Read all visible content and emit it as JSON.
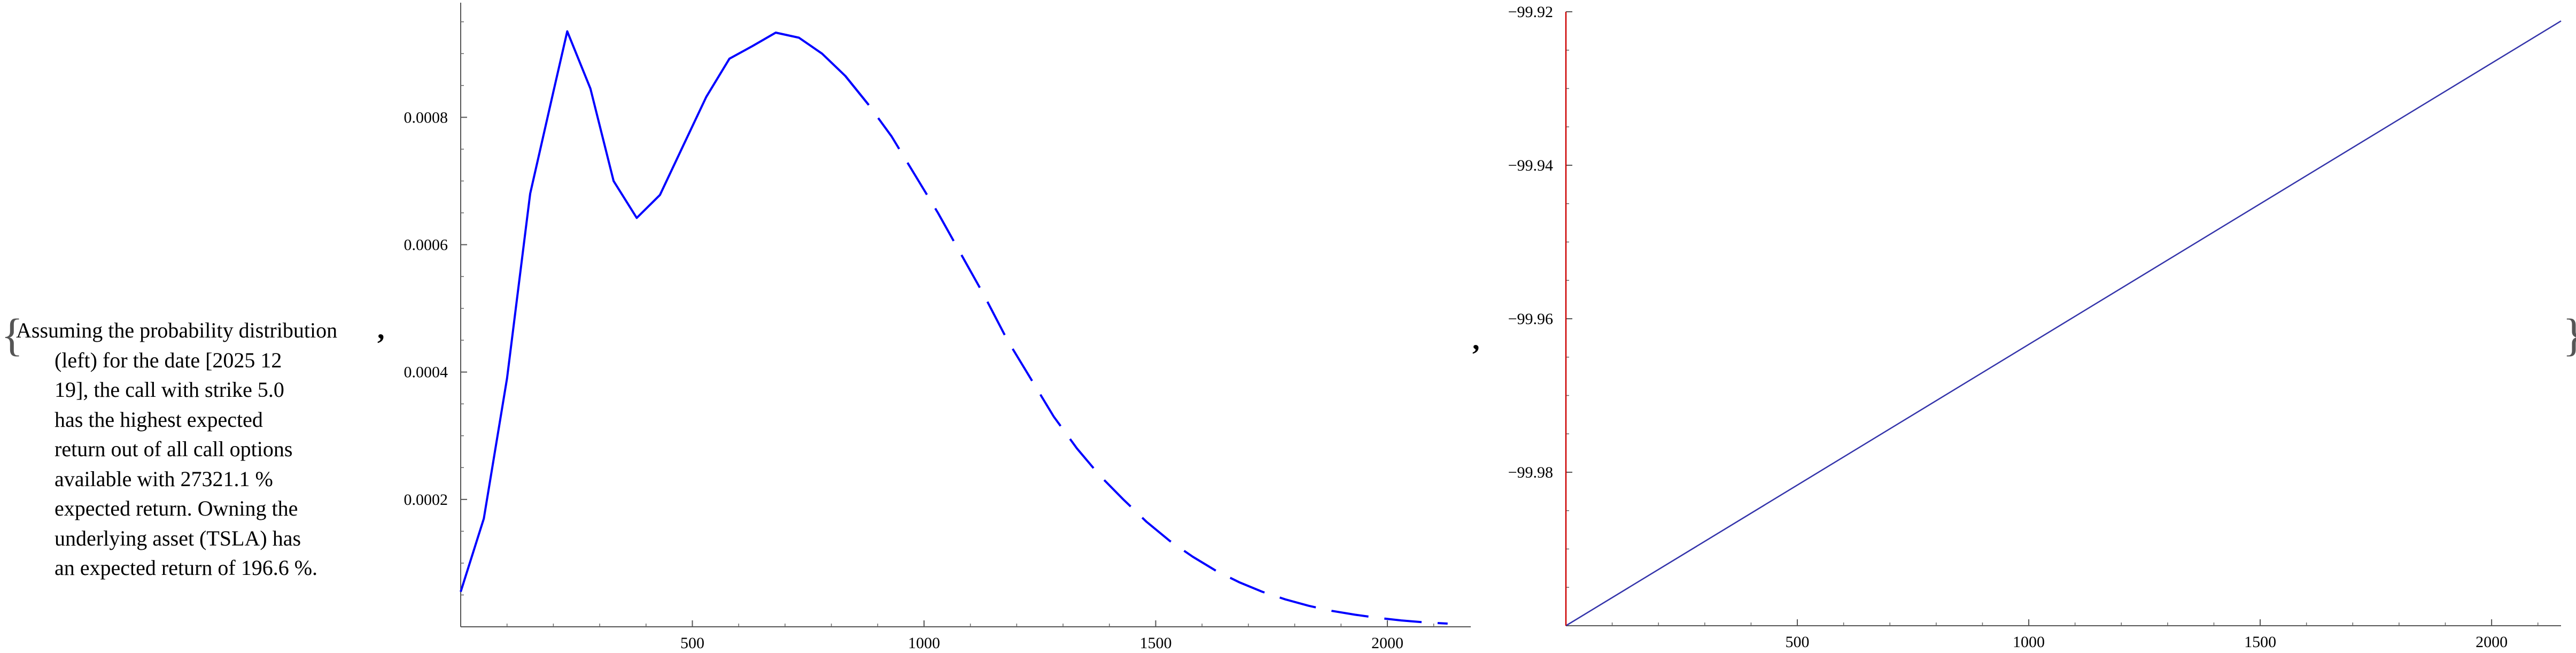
{
  "output": {
    "open_brace": "{",
    "close_brace": "}",
    "separator": ",",
    "text_lines": [
      "Assuming the probability distribution",
      "(left) for the date [2025 12",
      "19], the call with strike 5.0",
      "has the highest expected",
      "return out of all call options",
      "available with 27321.1 %",
      "expected return. Owning the",
      "underlying asset (TSLA) has",
      "an expected return of 196.6 %."
    ]
  },
  "chart_data": [
    {
      "type": "line",
      "title": "",
      "xlabel": "",
      "ylabel": "",
      "xlim": [
        0,
        2180
      ],
      "ylim": [
        0,
        0.00098
      ],
      "x_ticks": [
        500,
        1000,
        1500,
        2000
      ],
      "y_ticks": [
        0.0002,
        0.0004,
        0.0006,
        0.0008
      ],
      "y_tick_labels": [
        "0.0002",
        "0.0004",
        "0.0006",
        "0.0008"
      ],
      "color": "#0000ff",
      "series": [
        {
          "x": [
            0,
            50,
            100,
            150,
            200,
            230,
            280,
            330,
            380,
            430,
            480,
            530,
            580,
            630,
            680,
            730,
            780,
            830,
            880,
            930,
            980,
            1030,
            1080,
            1130,
            1180,
            1230,
            1280,
            1330,
            1380,
            1430,
            1480,
            1530,
            1580,
            1630,
            1680,
            1730,
            1780,
            1830,
            1880,
            1930,
            1980,
            2030,
            2080,
            2130
          ],
          "y": [
            5.5e-05,
            0.00017,
            0.00039,
            0.00068,
            0.00084,
            0.000935,
            0.000845,
            0.0007,
            0.000642,
            0.000678,
            0.000755,
            0.000832,
            0.000892,
            0.000912,
            0.000933,
            0.000925,
            0.0009,
            0.000865,
            0.00082,
            0.00077,
            0.00071,
            0.00065,
            0.000585,
            0.00052,
            0.00045,
            0.00039,
            0.00033,
            0.00028,
            0.000237,
            0.0002,
            0.000165,
            0.000135,
            0.00011,
            8.8e-05,
            7e-05,
            5.5e-05,
            4.3e-05,
            3.3e-05,
            2.5e-05,
            1.9e-05,
            1.4e-05,
            1e-05,
            7e-06,
            5e-06
          ]
        }
      ]
    },
    {
      "type": "line",
      "title": "",
      "xlabel": "",
      "ylabel": "",
      "xlim": [
        0,
        2150
      ],
      "ylim": [
        -100.0,
        -99.92
      ],
      "x_ticks": [
        500,
        1000,
        1500,
        2000
      ],
      "y_ticks": [
        -99.98,
        -99.96,
        -99.94,
        -99.92
      ],
      "y_tick_labels": [
        "-99.98",
        "-99.96",
        "-99.94",
        "-99.92"
      ],
      "series": [
        {
          "color": "#3333aa",
          "x": [
            0,
            2150
          ],
          "y": [
            -100.0,
            -99.9212
          ]
        },
        {
          "color": "#cc0000",
          "x": [
            0,
            0
          ],
          "y": [
            -100.0,
            -99.92
          ]
        }
      ]
    }
  ]
}
